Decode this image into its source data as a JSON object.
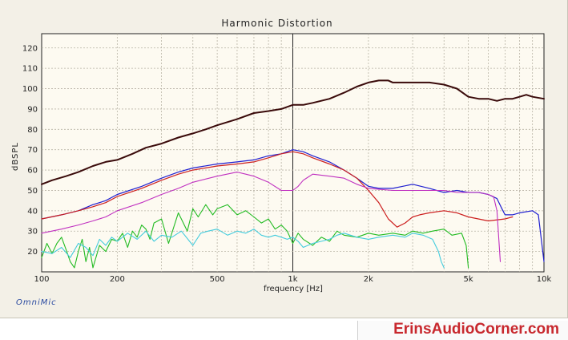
{
  "chart_data": {
    "type": "line",
    "title": "Harmonic Distortion",
    "xlabel": "frequency [Hz]",
    "ylabel": "dBSPL",
    "xscale": "log",
    "xlim": [
      100,
      10000
    ],
    "ylim": [
      10,
      127
    ],
    "grid": true,
    "x_ticks": [
      100,
      200,
      500,
      1000,
      2000,
      5000,
      10000
    ],
    "x_tick_labels": [
      "100",
      "200",
      "500",
      "1k",
      "2k",
      "5k",
      "10k"
    ],
    "y_ticks": [
      20,
      30,
      40,
      50,
      60,
      70,
      80,
      90,
      100,
      110,
      120
    ],
    "y_tick_labels": [
      "20",
      "30",
      "40",
      "50",
      "60",
      "70",
      "80",
      "90",
      "100",
      "110",
      "120"
    ],
    "series": [
      {
        "color": "#3a0a0a",
        "width": 2,
        "x": [
          100,
          110,
          125,
          140,
          160,
          180,
          200,
          230,
          260,
          300,
          350,
          400,
          450,
          500,
          600,
          700,
          800,
          900,
          1000,
          1100,
          1200,
          1400,
          1600,
          1800,
          2000,
          2200,
          2400,
          2500,
          2700,
          3000,
          3500,
          4000,
          4500,
          5000,
          5500,
          6000,
          6500,
          7000,
          7500,
          8000,
          8500,
          9000,
          10000
        ],
        "y": [
          53,
          55,
          57,
          59,
          62,
          64,
          65,
          68,
          71,
          73,
          76,
          78,
          80,
          82,
          85,
          88,
          89,
          90,
          92,
          92,
          93,
          95,
          98,
          101,
          103,
          104,
          104,
          103,
          103,
          103,
          103,
          102,
          100,
          96,
          95,
          95,
          94,
          95,
          95,
          96,
          97,
          96,
          95
        ]
      },
      {
        "color": "#1f1fd0",
        "width": 1.2,
        "x": [
          100,
          120,
          140,
          160,
          180,
          200,
          250,
          300,
          350,
          400,
          500,
          600,
          700,
          800,
          900,
          1000,
          1100,
          1200,
          1400,
          1600,
          1800,
          2000,
          2200,
          2500,
          3000,
          3500,
          4000,
          4500,
          5000,
          5500,
          6000,
          6500,
          6800,
          7000,
          7500,
          8000,
          9000,
          9500,
          10000
        ],
        "y": [
          36,
          38,
          40,
          43,
          45,
          48,
          52,
          56,
          59,
          61,
          63,
          64,
          65,
          67,
          68,
          70,
          69,
          67,
          64,
          60,
          56,
          52,
          51,
          51,
          53,
          51,
          49,
          50,
          49,
          49,
          48,
          46,
          41,
          38,
          38,
          39,
          40,
          38,
          15
        ]
      },
      {
        "color": "#cc1f1f",
        "width": 1.2,
        "x": [
          100,
          120,
          140,
          160,
          180,
          200,
          250,
          300,
          350,
          400,
          500,
          600,
          700,
          800,
          900,
          1000,
          1100,
          1200,
          1400,
          1600,
          1800,
          2000,
          2200,
          2400,
          2600,
          2800,
          3000,
          3200,
          3500,
          4000,
          4500,
          5000,
          6000,
          7000,
          7500
        ],
        "y": [
          36,
          38,
          40,
          42,
          44,
          47,
          51,
          55,
          58,
          60,
          62,
          63,
          64,
          66,
          68,
          69,
          68,
          66,
          63,
          60,
          56,
          50,
          44,
          36,
          32,
          34,
          37,
          38,
          39,
          40,
          39,
          37,
          35,
          36,
          37
        ]
      },
      {
        "color": "#c030c0",
        "width": 1.1,
        "x": [
          100,
          120,
          140,
          160,
          180,
          200,
          250,
          300,
          350,
          400,
          500,
          600,
          650,
          700,
          800,
          900,
          1000,
          1050,
          1100,
          1200,
          1400,
          1600,
          1800,
          2000,
          2500,
          3000,
          3500,
          4000,
          4500,
          5000,
          5500,
          6000,
          6300,
          6500,
          6700
        ],
        "y": [
          29,
          31,
          33,
          35,
          37,
          40,
          44,
          48,
          51,
          54,
          57,
          59,
          58,
          57,
          54,
          50,
          50,
          52,
          55,
          58,
          57,
          56,
          53,
          51,
          50,
          50,
          50,
          50,
          49,
          49,
          49,
          48,
          47,
          40,
          15
        ]
      },
      {
        "color": "#22bb22",
        "width": 1.1,
        "x": [
          100,
          105,
          110,
          115,
          120,
          125,
          130,
          135,
          140,
          145,
          150,
          155,
          160,
          170,
          180,
          190,
          200,
          210,
          220,
          230,
          240,
          250,
          260,
          270,
          280,
          300,
          320,
          350,
          380,
          400,
          420,
          450,
          480,
          500,
          550,
          600,
          650,
          700,
          750,
          800,
          850,
          900,
          950,
          1000,
          1050,
          1100,
          1200,
          1300,
          1400,
          1500,
          1600,
          1800,
          2000,
          2200,
          2500,
          2800,
          3000,
          3300,
          3600,
          4000,
          4300,
          4700,
          4900,
          5000
        ],
        "y": [
          17,
          24,
          19,
          24,
          27,
          21,
          15,
          12,
          20,
          26,
          15,
          22,
          12,
          23,
          20,
          26,
          25,
          29,
          22,
          30,
          27,
          33,
          31,
          26,
          34,
          36,
          24,
          39,
          30,
          41,
          37,
          43,
          38,
          41,
          43,
          38,
          40,
          37,
          34,
          36,
          31,
          33,
          30,
          24,
          29,
          26,
          23,
          27,
          25,
          30,
          28,
          27,
          29,
          28,
          29,
          28,
          30,
          29,
          30,
          31,
          28,
          29,
          23,
          12
        ]
      },
      {
        "color": "#44ccdd",
        "width": 1.1,
        "x": [
          100,
          110,
          120,
          130,
          140,
          150,
          160,
          170,
          180,
          190,
          200,
          220,
          240,
          260,
          280,
          300,
          330,
          360,
          400,
          430,
          460,
          500,
          550,
          600,
          650,
          700,
          750,
          800,
          850,
          900,
          950,
          1000,
          1050,
          1100,
          1200,
          1300,
          1400,
          1500,
          1600,
          1800,
          2000,
          2200,
          2500,
          2800,
          3000,
          3300,
          3600,
          3800,
          3900,
          4000
        ],
        "y": [
          20,
          19,
          22,
          17,
          24,
          22,
          18,
          26,
          23,
          27,
          25,
          29,
          26,
          30,
          25,
          28,
          27,
          30,
          23,
          29,
          30,
          31,
          28,
          30,
          29,
          31,
          28,
          27,
          28,
          27,
          26,
          27,
          25,
          22,
          24,
          25,
          26,
          28,
          29,
          27,
          26,
          27,
          28,
          27,
          29,
          28,
          26,
          20,
          15,
          12
        ]
      }
    ]
  },
  "footer": {
    "app_label": "OmniMic",
    "brand": "ErinsAudioCorner.com"
  },
  "colors": {
    "plot_background": "#fdfaf1",
    "frame_background": "#f3f0e7",
    "grid": "#b9b4a6",
    "brand_red": "#c8282e"
  }
}
